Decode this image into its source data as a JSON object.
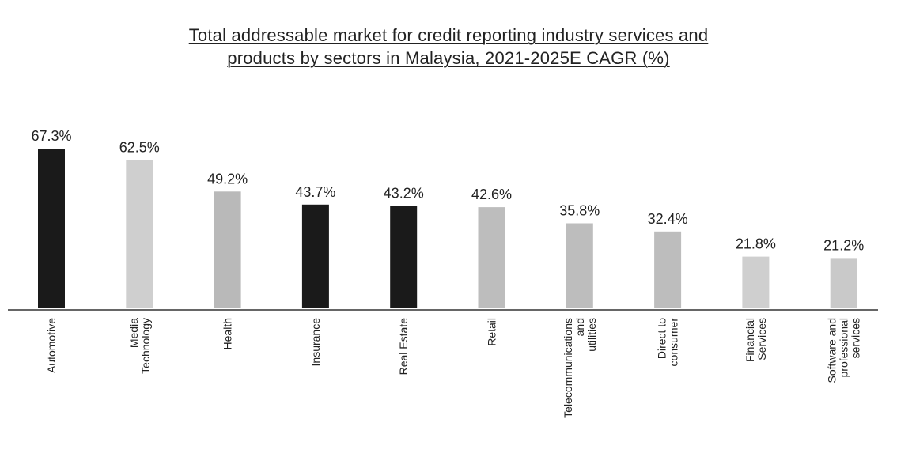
{
  "chart_data": {
    "type": "bar",
    "title_line1": "Total addressable market for credit reporting industry services and",
    "title_line2": "products by sectors in Malaysia, 2021-2025E CAGR (%)",
    "categories": [
      "Automotive",
      "Media\nTechnology",
      "Health",
      "Insurance",
      "Real Estate",
      "Retail",
      "Telecommunications\nand\nutilities",
      "Direct to\nconsumer",
      "Financial\nServices",
      "Software and\nprofessional\nservices"
    ],
    "values": [
      67.3,
      62.5,
      49.2,
      43.7,
      43.2,
      42.6,
      35.8,
      32.4,
      21.8,
      21.2
    ],
    "value_labels": [
      "67.3%",
      "62.5%",
      "49.2%",
      "43.7%",
      "43.2%",
      "42.6%",
      "35.8%",
      "32.4%",
      "21.8%",
      "21.2%"
    ],
    "bar_colors": [
      "#1a1a1a",
      "#cfcfcf",
      "#b9b9b9",
      "#1a1a1a",
      "#1a1a1a",
      "#bdbdbd",
      "#bdbdbd",
      "#bdbdbd",
      "#cfcfcf",
      "#c9c9c9"
    ],
    "ylim": [
      0,
      67.3
    ],
    "grid": false,
    "legend": "none"
  }
}
